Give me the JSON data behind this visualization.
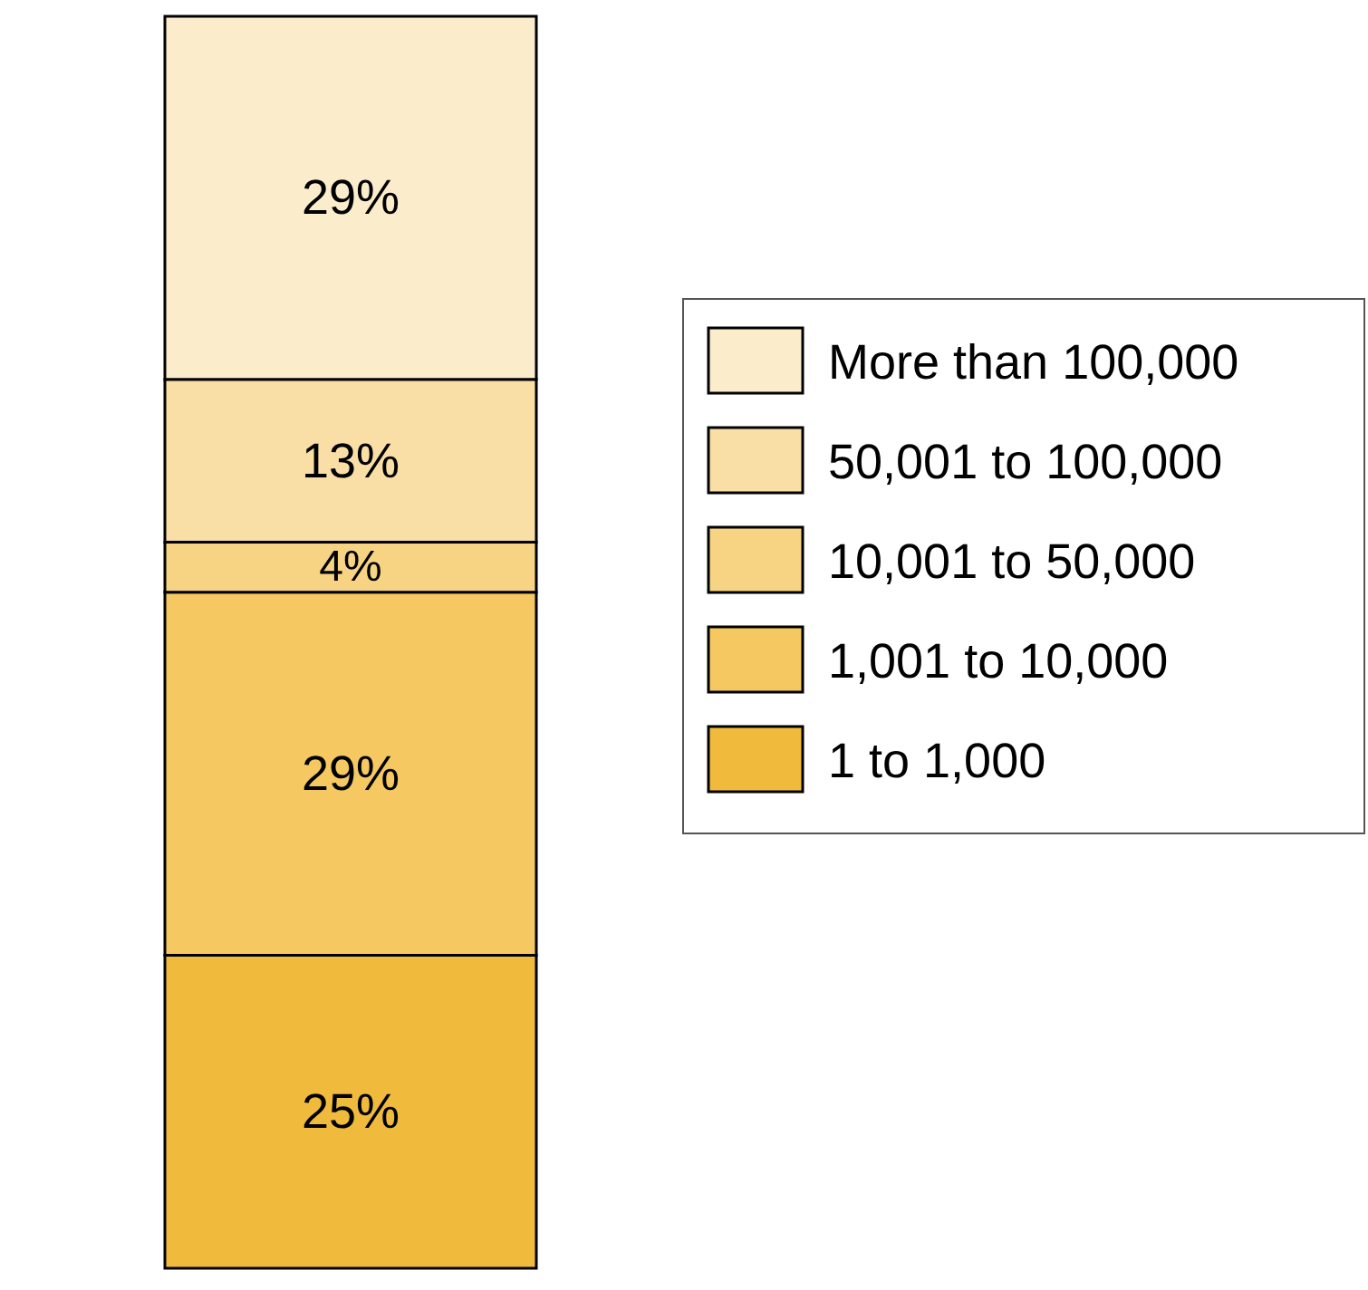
{
  "chart_data": {
    "type": "bar",
    "stacked": true,
    "categories": [
      null
    ],
    "legend": "right",
    "series": [
      {
        "name": "1 to 1,000",
        "color": "#f0bb3c",
        "values": [
          25
        ],
        "value_labels": [
          "25%"
        ]
      },
      {
        "name": "1,001 to 10,000",
        "color": "#f5c862",
        "values": [
          29
        ],
        "value_labels": [
          "29%"
        ]
      },
      {
        "name": "10,001 to 50,000",
        "color": "#f7d484",
        "values": [
          4
        ],
        "value_labels": [
          "4%"
        ]
      },
      {
        "name": "50,001 to 100,000",
        "color": "#f9dfa5",
        "values": [
          13
        ],
        "value_labels": [
          "13%"
        ]
      },
      {
        "name": "More than 100,000",
        "color": "#fbedcc",
        "values": [
          29
        ],
        "value_labels": [
          "29%"
        ]
      }
    ]
  }
}
